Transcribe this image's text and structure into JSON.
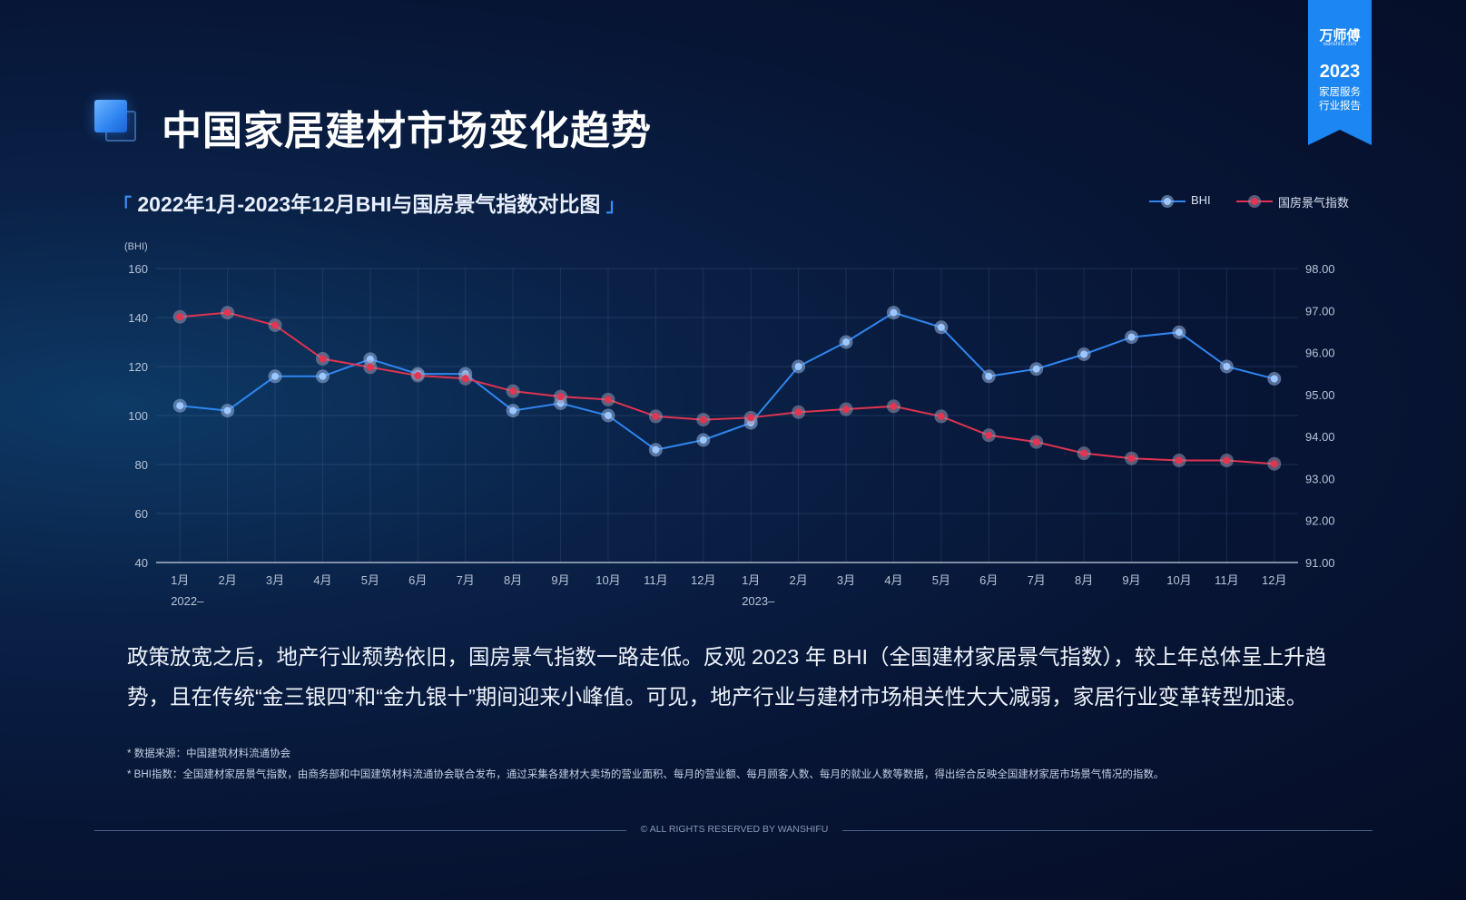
{
  "page_title": "中国家居建材市场变化趋势",
  "ribbon": {
    "brand": "万师傅",
    "brand_sub": "wanshifu.com",
    "year": "2023",
    "line1": "家居服务",
    "line2": "行业报告",
    "color": "#1c86f2"
  },
  "chart_title_open": "「",
  "chart_title": "2022年1月-2023年12月BHI与国房景气指数对比图",
  "chart_title_close": "」",
  "legend": {
    "bhi": "BHI",
    "gf": "国房景气指数"
  },
  "colors": {
    "bhi": "#2f86f0",
    "gf": "#e0334f",
    "accent": "#3d8df5"
  },
  "chart_data": {
    "type": "line",
    "categories": [
      "1月",
      "2月",
      "3月",
      "4月",
      "5月",
      "6月",
      "7月",
      "8月",
      "9月",
      "10月",
      "11月",
      "12月",
      "1月",
      "2月",
      "3月",
      "4月",
      "5月",
      "6月",
      "7月",
      "8月",
      "9月",
      "10月",
      "11月",
      "12月"
    ],
    "year_labels": [
      {
        "index": 0,
        "label": "2022–"
      },
      {
        "index": 12,
        "label": "2023–"
      }
    ],
    "y_left": {
      "unit": "(BHI)",
      "min": 40,
      "max": 160,
      "ticks": [
        "40",
        "60",
        "80",
        "100",
        "120",
        "140",
        "160"
      ]
    },
    "y_right": {
      "min": 91,
      "max": 98,
      "ticks": [
        "91.00",
        "92.00",
        "93.00",
        "94.00",
        "95.00",
        "96.00",
        "97.00",
        "98.00"
      ]
    },
    "series": [
      {
        "name": "BHI",
        "axis": "left",
        "values": [
          104,
          102,
          116,
          116,
          123,
          117,
          117,
          102,
          105,
          100,
          86,
          90,
          97,
          120,
          130,
          142,
          136,
          116,
          119,
          125,
          132,
          134,
          120,
          115
        ]
      },
      {
        "name": "国房景气指数",
        "axis": "right",
        "values": [
          96.85,
          96.95,
          96.65,
          95.85,
          95.65,
          95.45,
          95.38,
          95.08,
          94.95,
          94.88,
          94.48,
          94.4,
          94.45,
          94.58,
          94.65,
          94.72,
          94.48,
          94.03,
          93.87,
          93.6,
          93.48,
          93.43,
          93.43,
          93.35
        ]
      }
    ],
    "grid": true,
    "legend_position": "top-right"
  },
  "description": "政策放宽之后，地产行业颓势依旧，国房景气指数一路走低。反观 2023 年 BHI（全国建材家居景气指数），较上年总体呈上升趋势，且在传统“金三银四”和“金九银十”期间迎来小峰值。可见，地产行业与建材市场相关性大大减弱，家居行业变革转型加速。",
  "notes": [
    "* 数据来源：中国建筑材料流通协会",
    "* BHI指数：全国建材家居景气指数，由商务部和中国建筑材料流通协会联合发布，通过采集各建材大卖场的营业面积、每月的营业额、每月顾客人数、每月的就业人数等数据，得出综合反映全国建材家居市场景气情况的指数。"
  ],
  "copyright": "© ALL RIGHTS RESERVED BY WANSHIFU"
}
